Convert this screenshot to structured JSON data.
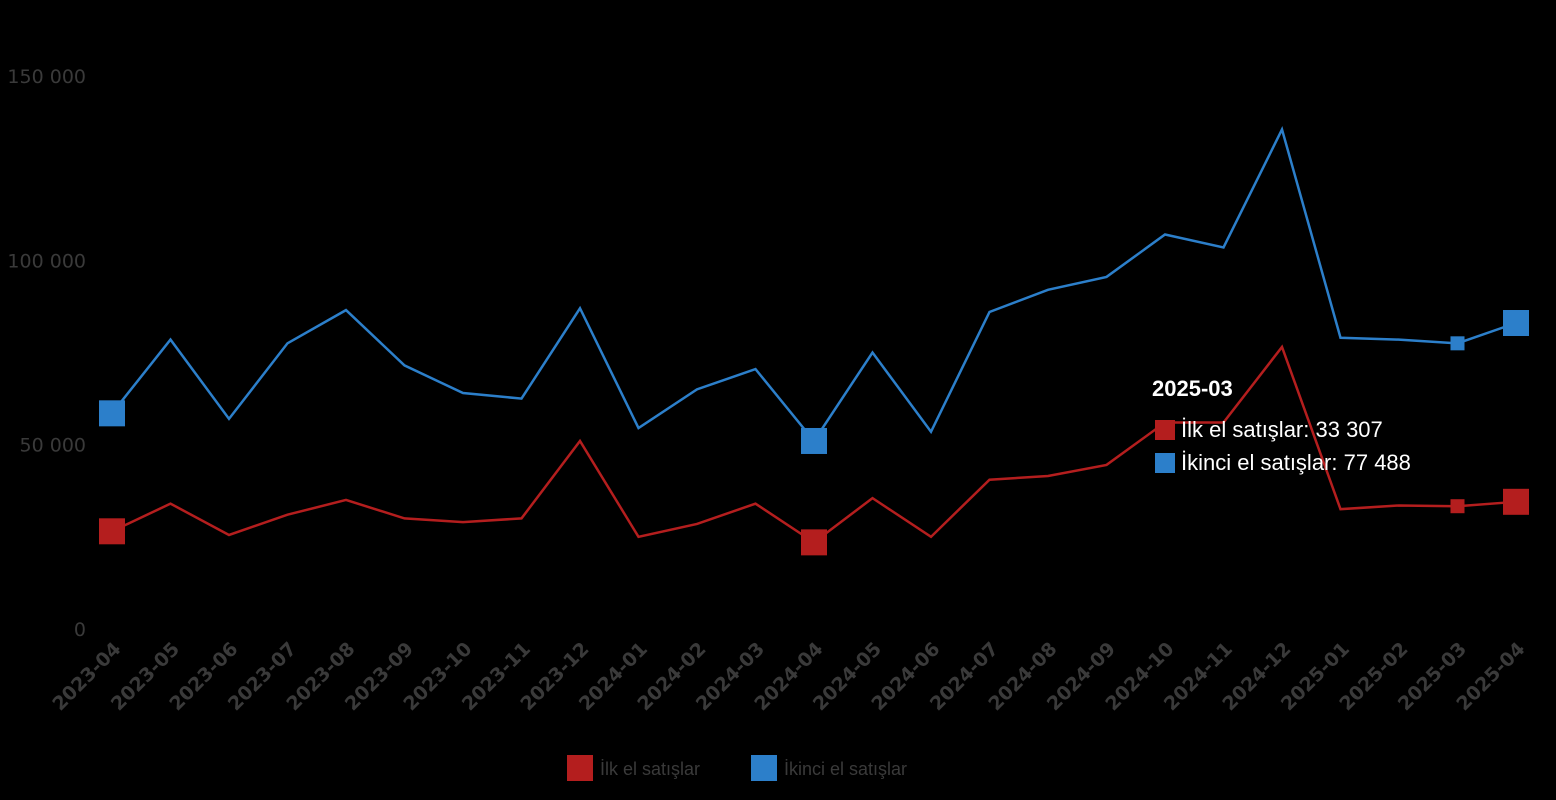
{
  "chart_data": {
    "type": "line",
    "title": "",
    "xlabel": "",
    "ylabel": "",
    "ylim": [
      0,
      150000
    ],
    "y_ticks": [
      0,
      50000,
      100000,
      150000
    ],
    "y_tick_labels": [
      "0",
      "50 000",
      "100 000",
      "150 000"
    ],
    "grid": false,
    "legend_position": "bottom-center",
    "categories": [
      "2023-04",
      "2023-05",
      "2023-06",
      "2023-07",
      "2023-08",
      "2023-09",
      "2023-10",
      "2023-11",
      "2023-12",
      "2024-01",
      "2024-02",
      "2024-03",
      "2024-04",
      "2024-05",
      "2024-06",
      "2024-07",
      "2024-08",
      "2024-09",
      "2024-10",
      "2024-11",
      "2024-12",
      "2025-01",
      "2025-02",
      "2025-03",
      "2025-04"
    ],
    "series": [
      {
        "name": "İlk el satışlar",
        "color": "#b41e1e",
        "values": [
          26500,
          34000,
          25500,
          31000,
          35000,
          30000,
          29000,
          30000,
          51000,
          25000,
          28500,
          34000,
          23500,
          35500,
          25000,
          40500,
          41500,
          44500,
          56000,
          56000,
          76500,
          32500,
          33500,
          33307,
          34500
        ]
      },
      {
        "name": "İkinci el satışlar",
        "color": "#2c7fca",
        "values": [
          58500,
          78500,
          57000,
          77500,
          86500,
          71500,
          64000,
          62500,
          87000,
          54500,
          65000,
          70500,
          51000,
          75000,
          53500,
          86000,
          92000,
          95500,
          107000,
          103500,
          135500,
          79000,
          78500,
          77488,
          83000
        ]
      }
    ],
    "highlighted_categories": [
      "2023-04",
      "2024-04",
      "2025-04"
    ],
    "tooltip": {
      "category": "2025-03",
      "rows": [
        {
          "series": "İlk el satışlar",
          "label": "İlk el satışlar: 33 307",
          "color": "#b41e1e"
        },
        {
          "series": "İkinci el satışlar",
          "label": "İkinci el satışlar: 77 488",
          "color": "#2c7fca"
        }
      ]
    }
  }
}
